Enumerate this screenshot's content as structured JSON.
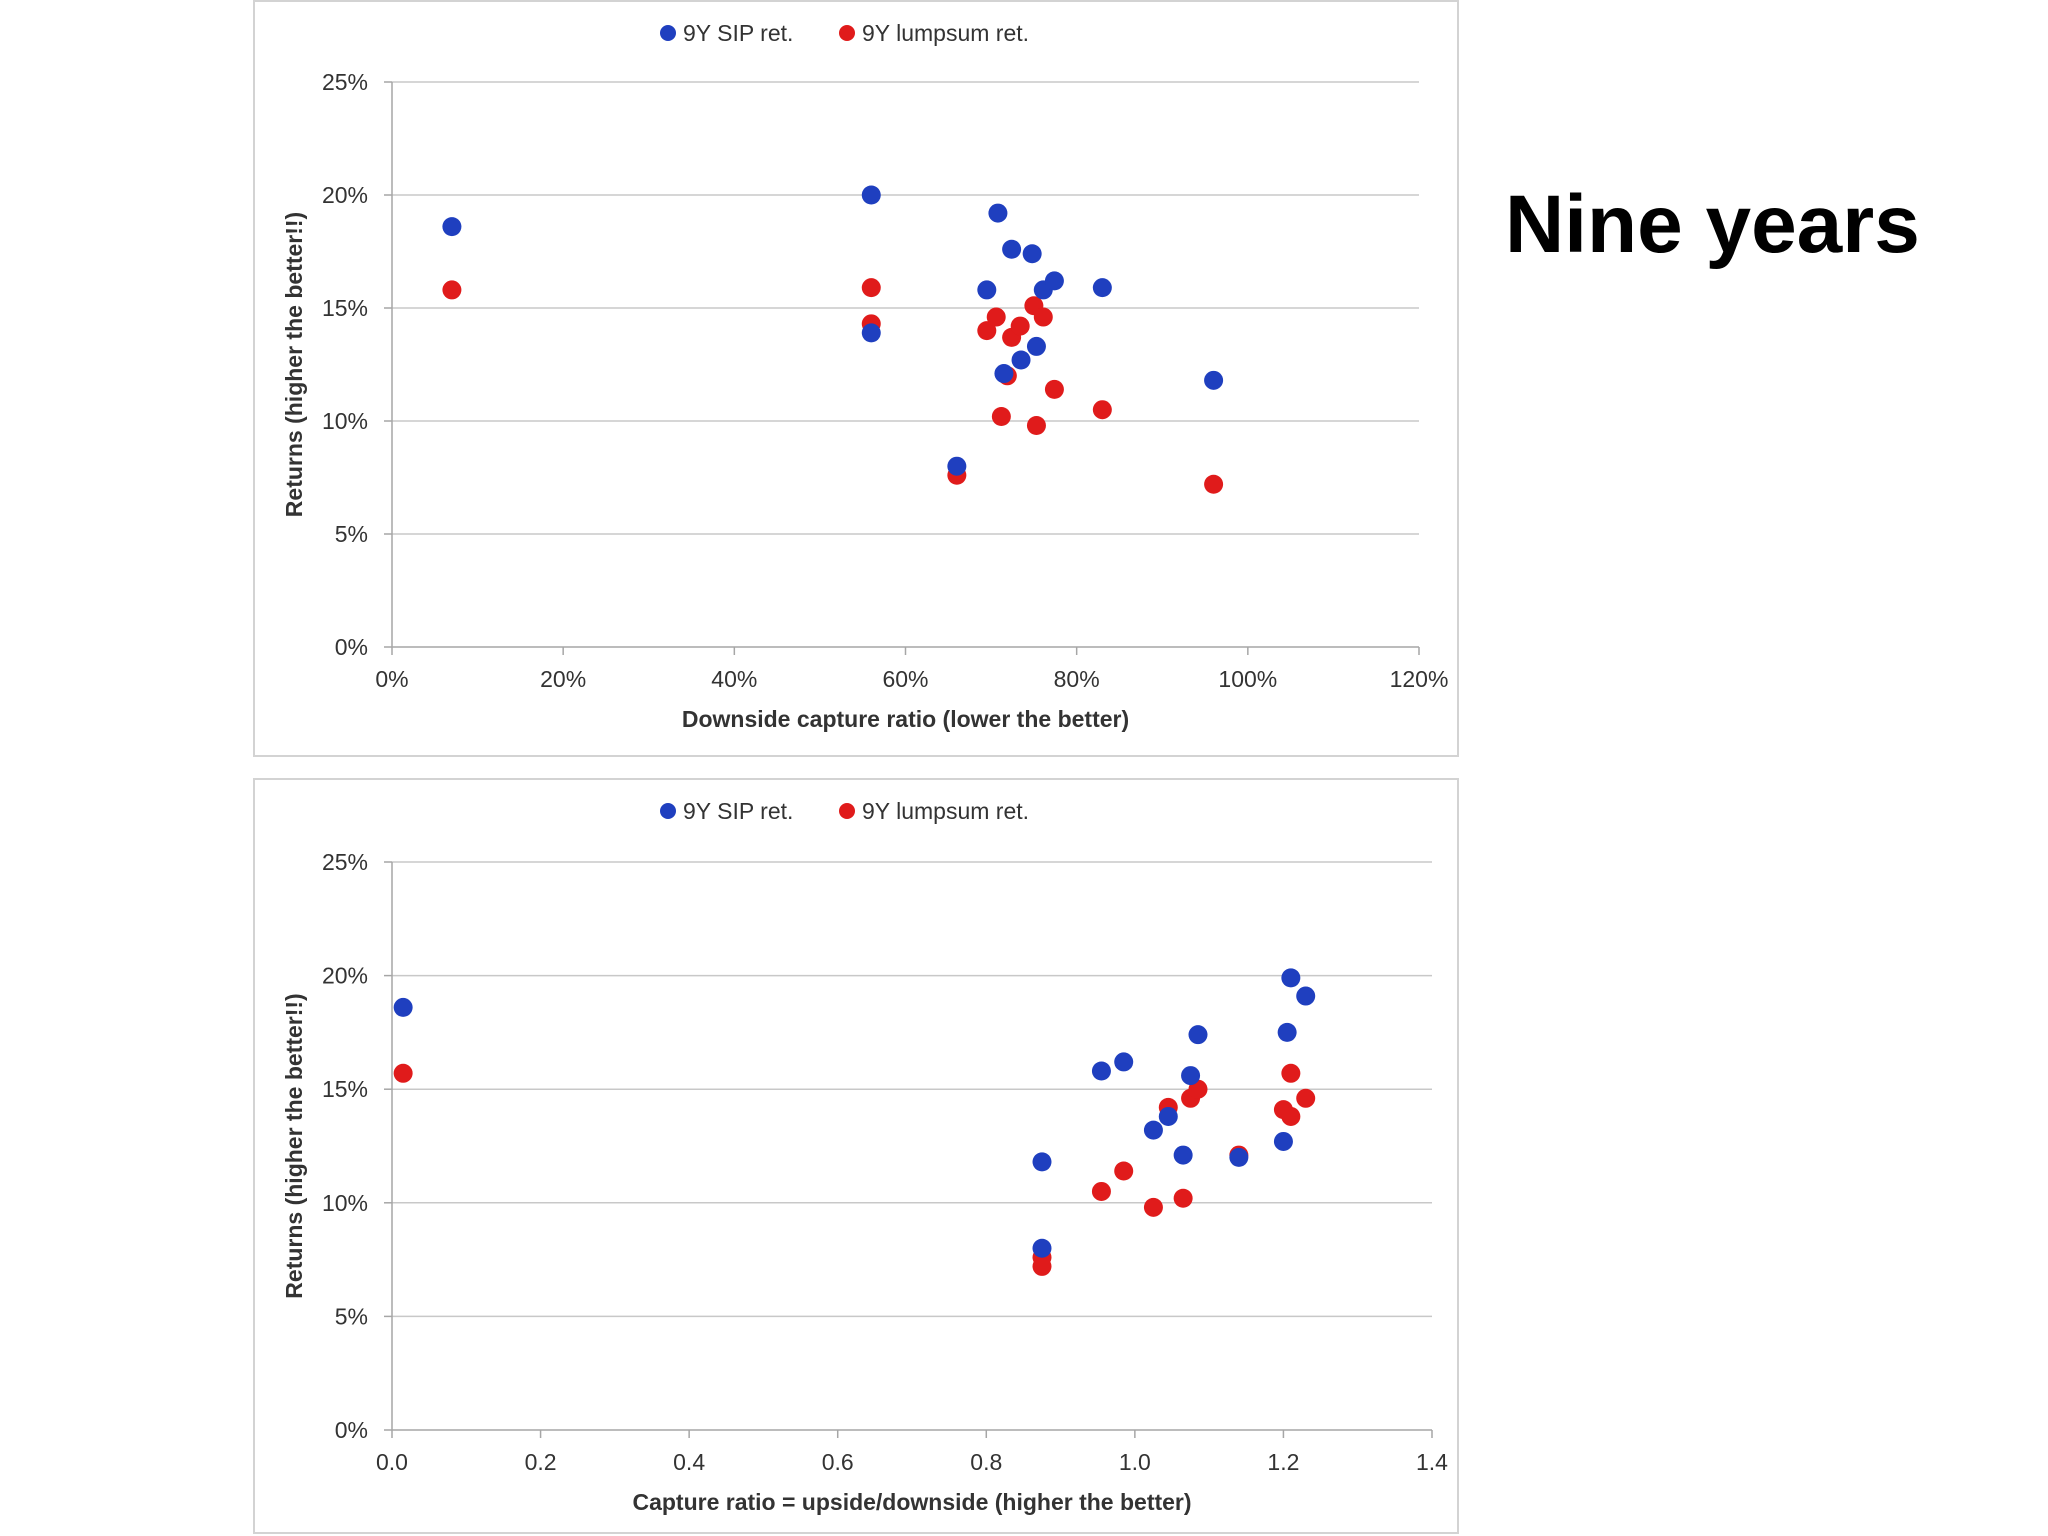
{
  "slide": {
    "title": "Nine years"
  },
  "colors": {
    "sip": "#1f3fbf",
    "lumpsum": "#e01b1b",
    "grid": "#c8c8c8",
    "axis": "#a6a6a6",
    "text": "#333333"
  },
  "chart_data": [
    {
      "type": "scatter",
      "title": "",
      "xlabel": "Downside capture ratio (lower the better)",
      "ylabel": "Returns (higher the better!!)",
      "xlim": [
        0,
        120
      ],
      "ylim": [
        0,
        25
      ],
      "x_tick_values": [
        0,
        20,
        40,
        60,
        80,
        100,
        120
      ],
      "x_tick_labels": [
        "0%",
        "20%",
        "40%",
        "60%",
        "80%",
        "100%",
        "120%"
      ],
      "y_tick_values": [
        0,
        5,
        10,
        15,
        20,
        25
      ],
      "y_tick_labels": [
        "0%",
        "5%",
        "10%",
        "15%",
        "20%",
        "25%"
      ],
      "grid": true,
      "legend_position": "top",
      "series": [
        {
          "name": "9Y SIP ret.",
          "color": "#1f3fbf",
          "points": [
            [
              7,
              18.6
            ],
            [
              56,
              20
            ],
            [
              56,
              13.9
            ],
            [
              66,
              8
            ],
            [
              69.5,
              15.8
            ],
            [
              70.8,
              19.2
            ],
            [
              71.5,
              12.1
            ],
            [
              72.4,
              17.6
            ],
            [
              73.5,
              12.7
            ],
            [
              74.8,
              17.4
            ],
            [
              75.3,
              13.3
            ],
            [
              76.1,
              15.8
            ],
            [
              77.4,
              16.2
            ],
            [
              83,
              15.9
            ],
            [
              96,
              11.8
            ]
          ]
        },
        {
          "name": "9Y lumpsum ret.",
          "color": "#e01b1b",
          "points": [
            [
              7,
              15.8
            ],
            [
              56,
              15.9
            ],
            [
              56,
              14.3
            ],
            [
              66,
              7.6
            ],
            [
              69.5,
              14
            ],
            [
              70.6,
              14.6
            ],
            [
              71.2,
              10.2
            ],
            [
              71.9,
              12
            ],
            [
              72.4,
              13.7
            ],
            [
              73.4,
              14.2
            ],
            [
              75,
              15.1
            ],
            [
              75.3,
              9.8
            ],
            [
              76.1,
              14.6
            ],
            [
              77.4,
              11.4
            ],
            [
              83,
              10.5
            ],
            [
              96,
              7.2
            ]
          ]
        }
      ]
    },
    {
      "type": "scatter",
      "title": "",
      "xlabel": "Capture ratio = upside/downside (higher the better)",
      "ylabel": "Returns (higher the better!!)",
      "xlim": [
        0,
        1.4
      ],
      "ylim": [
        0,
        25
      ],
      "x_tick_values": [
        0,
        0.2,
        0.4,
        0.6,
        0.8,
        1.0,
        1.2,
        1.4
      ],
      "x_tick_labels": [
        "0.0",
        "0.2",
        "0.4",
        "0.6",
        "0.8",
        "1.0",
        "1.2",
        "1.4"
      ],
      "y_tick_values": [
        0,
        5,
        10,
        15,
        20,
        25
      ],
      "y_tick_labels": [
        "0%",
        "5%",
        "10%",
        "15%",
        "20%",
        "25%"
      ],
      "grid": true,
      "legend_position": "top",
      "series": [
        {
          "name": "9Y SIP ret.",
          "color": "#1f3fbf",
          "points": [
            [
              0.015,
              18.6
            ],
            [
              0.875,
              11.8
            ],
            [
              0.875,
              8
            ],
            [
              0.955,
              15.8
            ],
            [
              0.985,
              16.2
            ],
            [
              1.025,
              13.2
            ],
            [
              1.045,
              13.8
            ],
            [
              1.065,
              12.1
            ],
            [
              1.075,
              15.6
            ],
            [
              1.085,
              17.4
            ],
            [
              1.14,
              12
            ],
            [
              1.2,
              12.7
            ],
            [
              1.205,
              17.5
            ],
            [
              1.21,
              19.9
            ],
            [
              1.23,
              19.1
            ]
          ]
        },
        {
          "name": "9Y lumpsum ret.",
          "color": "#e01b1b",
          "points": [
            [
              0.015,
              15.7
            ],
            [
              0.875,
              7.6
            ],
            [
              0.875,
              7.2
            ],
            [
              0.955,
              10.5
            ],
            [
              0.985,
              11.4
            ],
            [
              1.025,
              9.8
            ],
            [
              1.045,
              14.2
            ],
            [
              1.065,
              10.2
            ],
            [
              1.075,
              14.6
            ],
            [
              1.085,
              15
            ],
            [
              1.14,
              12.1
            ],
            [
              1.2,
              14.1
            ],
            [
              1.21,
              13.8
            ],
            [
              1.21,
              15.7
            ],
            [
              1.23,
              14.6
            ]
          ]
        }
      ]
    }
  ]
}
